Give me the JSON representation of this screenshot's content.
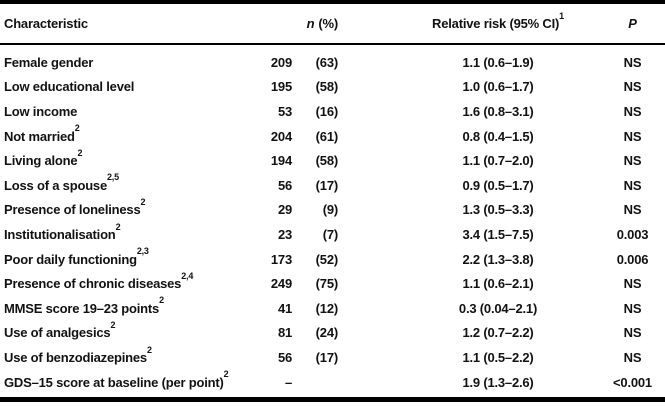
{
  "table": {
    "header": {
      "characteristic": "Characteristic",
      "n_symbol": "n",
      "n_rest": "(%)",
      "rr_label": "Relative risk (95% CI)",
      "rr_footnote": "1",
      "p_label": "P"
    },
    "rows": [
      {
        "label": "Female gender",
        "sup": "",
        "n": "209",
        "pct": "(63)",
        "rr": "1.1 (0.6–1.9)",
        "p": "NS"
      },
      {
        "label": "Low educational level",
        "sup": "",
        "n": "195",
        "pct": "(58)",
        "rr": "1.0 (0.6–1.7)",
        "p": "NS"
      },
      {
        "label": "Low income",
        "sup": "",
        "n": "53",
        "pct": "(16)",
        "rr": "1.6 (0.8–3.1)",
        "p": "NS"
      },
      {
        "label": "Not married",
        "sup": "2",
        "n": "204",
        "pct": "(61)",
        "rr": "0.8 (0.4–1.5)",
        "p": "NS"
      },
      {
        "label": "Living alone",
        "sup": "2",
        "n": "194",
        "pct": "(58)",
        "rr": "1.1 (0.7–2.0)",
        "p": "NS"
      },
      {
        "label": "Loss of a spouse",
        "sup": "2,5",
        "n": "56",
        "pct": "(17)",
        "rr": "0.9 (0.5–1.7)",
        "p": "NS"
      },
      {
        "label": "Presence of loneliness",
        "sup": "2",
        "n": "29",
        "pct": "(9)",
        "rr": "1.3 (0.5–3.3)",
        "p": "NS"
      },
      {
        "label": "Institutionalisation",
        "sup": "2",
        "n": "23",
        "pct": "(7)",
        "rr": "3.4 (1.5–7.5)",
        "p": "0.003"
      },
      {
        "label": "Poor daily functioning",
        "sup": "2,3",
        "n": "173",
        "pct": "(52)",
        "rr": "2.2 (1.3–3.8)",
        "p": "0.006"
      },
      {
        "label": "Presence of chronic diseases",
        "sup": "2,4",
        "n": "249",
        "pct": "(75)",
        "rr": "1.1 (0.6–2.1)",
        "p": "NS"
      },
      {
        "label": "MMSE score 19–23 points",
        "sup": "2",
        "n": "41",
        "pct": "(12)",
        "rr": "0.3 (0.04–2.1)",
        "p": "NS"
      },
      {
        "label": "Use of analgesics",
        "sup": "2",
        "n": "81",
        "pct": "(24)",
        "rr": "1.2 (0.7–2.2)",
        "p": "NS"
      },
      {
        "label": "Use of benzodiazepines",
        "sup": "2",
        "n": "56",
        "pct": "(17)",
        "rr": "1.1 (0.5–2.2)",
        "p": "NS"
      },
      {
        "label": "GDS–15 score at baseline (per point)",
        "sup": "2",
        "n": "–",
        "pct": "",
        "rr": "1.9 (1.3–2.6)",
        "p": "<0.001"
      }
    ]
  }
}
